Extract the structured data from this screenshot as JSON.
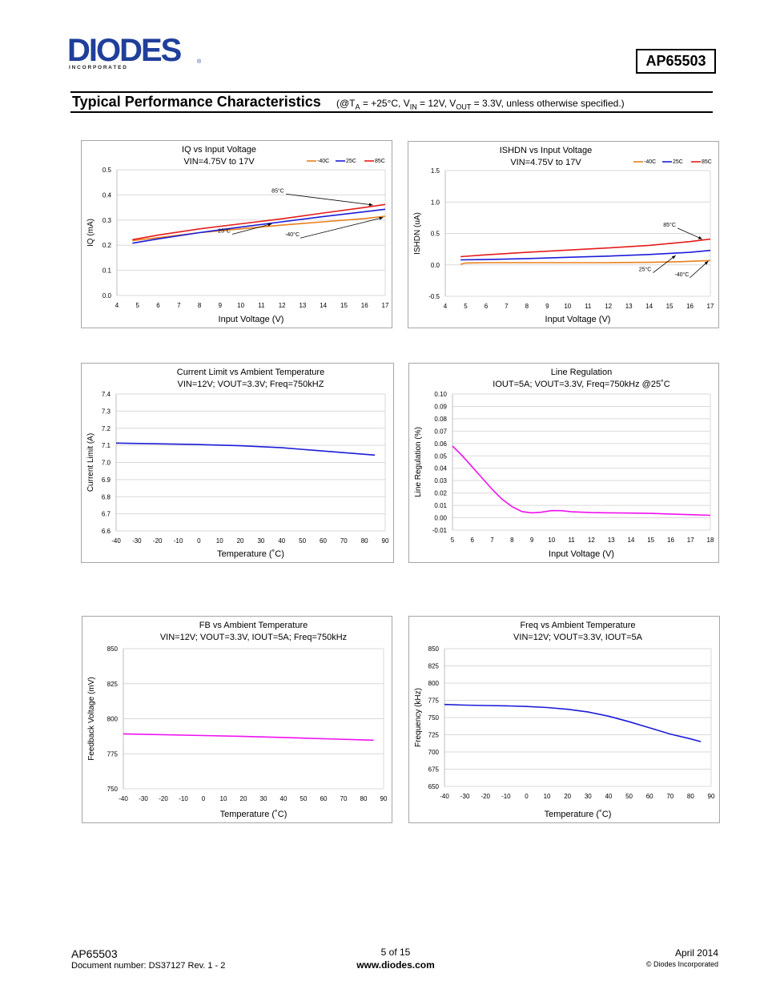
{
  "header": {
    "part_number": "AP65503",
    "section_title": "Typical Performance Characteristics",
    "conditions": {
      "open": "(@T",
      "ta_sub": "A",
      "mid1": " = +25°C, V",
      "vin_sub": "IN",
      "mid2": " = 12V, V",
      "vout_sub": "OUT",
      "end": " = 3.3V, unless otherwise specified.)"
    }
  },
  "logo": {
    "text": "DIODES",
    "sub": "I N C O R P O R A T E D",
    "reg": "®"
  },
  "colors": {
    "orange": "#E8801C",
    "blue": "#1C1CD8",
    "red": "#E41C1C",
    "magenta": "#F010F0",
    "grid": "#d9d9d9"
  },
  "chart_data": [
    {
      "type": "line",
      "title": "IQ vs Input Voltage",
      "subtitle": "VIN=4.75V to 17V",
      "xlabel": "Input Voltage (V)",
      "ylabel": "IQ (mA)",
      "xlim": [
        4,
        17
      ],
      "ylim": [
        0,
        0.5
      ],
      "xticks": [
        "4",
        "5",
        "6",
        "7",
        "8",
        "9",
        "10",
        "11",
        "12",
        "13",
        "14",
        "15",
        "16",
        "17"
      ],
      "yticks": [
        "0.0",
        "0.1",
        "0.2",
        "0.3",
        "0.4",
        "0.5"
      ],
      "grid": true,
      "legend": "top-right",
      "series": [
        {
          "name": "-40C",
          "color": "#E8801C",
          "x": [
            4.75,
            6,
            8,
            10,
            12,
            14,
            16,
            17
          ],
          "y": [
            0.218,
            0.23,
            0.25,
            0.265,
            0.28,
            0.293,
            0.306,
            0.315
          ]
        },
        {
          "name": "25C",
          "color": "#1C1CD8",
          "x": [
            4.75,
            6,
            8,
            10,
            12,
            14,
            16,
            17
          ],
          "y": [
            0.208,
            0.225,
            0.25,
            0.272,
            0.293,
            0.314,
            0.333,
            0.343
          ]
        },
        {
          "name": "85C",
          "color": "#E41C1C",
          "x": [
            4.75,
            6,
            8,
            10,
            12,
            14,
            16,
            17
          ],
          "y": [
            0.222,
            0.24,
            0.265,
            0.285,
            0.305,
            0.328,
            0.35,
            0.362
          ]
        }
      ],
      "annotations": [
        {
          "text": "85°C",
          "lx": 11.8,
          "ly": 0.41,
          "ax": 16.4,
          "ay": 0.36
        },
        {
          "text": "25°C",
          "lx": 9.2,
          "ly": 0.25,
          "ax": 11.5,
          "ay": 0.285
        },
        {
          "text": "-40°C",
          "lx": 12.5,
          "ly": 0.235,
          "ax": 16.9,
          "ay": 0.31
        }
      ]
    },
    {
      "type": "line",
      "title": "ISHDN vs Input Voltage",
      "subtitle": "VIN=4.75V to 17V",
      "xlabel": "Input Voltage (V)",
      "ylabel": "ISHDN (uA)",
      "xlim": [
        4,
        17
      ],
      "ylim": [
        -0.5,
        1.5
      ],
      "xticks": [
        "4",
        "5",
        "6",
        "7",
        "8",
        "9",
        "10",
        "11",
        "12",
        "13",
        "14",
        "15",
        "16",
        "17"
      ],
      "yticks": [
        "-0.5",
        "0.0",
        "0.5",
        "1.0",
        "1.5"
      ],
      "grid": true,
      "legend": "top-right",
      "series": [
        {
          "name": "-40C",
          "color": "#E8801C",
          "x": [
            4.75,
            5,
            6,
            8,
            10,
            12,
            14,
            15.5,
            17
          ],
          "y": [
            0.01,
            0.03,
            0.035,
            0.035,
            0.035,
            0.035,
            0.04,
            0.05,
            0.07
          ]
        },
        {
          "name": "25C",
          "color": "#1C1CD8",
          "x": [
            4.75,
            6,
            8,
            10,
            12,
            14,
            16,
            17
          ],
          "y": [
            0.08,
            0.085,
            0.1,
            0.12,
            0.14,
            0.165,
            0.2,
            0.23
          ]
        },
        {
          "name": "85C",
          "color": "#E41C1C",
          "x": [
            4.75,
            6,
            8,
            10,
            12,
            14,
            16,
            17
          ],
          "y": [
            0.13,
            0.16,
            0.2,
            0.235,
            0.27,
            0.31,
            0.37,
            0.41
          ]
        }
      ],
      "annotations": [
        {
          "text": "85°C",
          "lx": 15.0,
          "ly": 0.61,
          "ax": 16.6,
          "ay": 0.41
        },
        {
          "text": "25°C",
          "lx": 13.8,
          "ly": -0.1,
          "ax": 15.3,
          "ay": 0.15
        },
        {
          "text": "-40°C",
          "lx": 15.6,
          "ly": -0.18,
          "ax": 16.9,
          "ay": 0.06
        }
      ]
    },
    {
      "type": "line",
      "title": "Current Limit vs Ambient Temperature",
      "subtitle": "VIN=12V; VOUT=3.3V; Freq=750kHZ",
      "xlabel": "Temperature (˚C)",
      "ylabel": "Current Limit (A)",
      "xlim": [
        -40,
        90
      ],
      "ylim": [
        6.6,
        7.4
      ],
      "xticks": [
        "-40",
        "-30",
        "-20",
        "-10",
        "0",
        "10",
        "20",
        "30",
        "40",
        "50",
        "60",
        "70",
        "80",
        "90"
      ],
      "yticks": [
        "6.6",
        "6.7",
        "6.8",
        "6.9",
        "7.0",
        "7.1",
        "7.2",
        "7.3",
        "7.4"
      ],
      "grid": true,
      "series": [
        {
          "color": "#1C1CD8",
          "x": [
            -40,
            -20,
            0,
            20,
            40,
            60,
            85
          ],
          "y": [
            7.113,
            7.109,
            7.105,
            7.098,
            7.086,
            7.067,
            7.043
          ]
        }
      ]
    },
    {
      "type": "line",
      "title": "Line Regulation",
      "subtitle": "IOUT=5A; VOUT=3.3V, Freq=750kHz @25˚C",
      "xlabel": "Input Voltage (V)",
      "ylabel": "Line Regulation (%)",
      "xlim": [
        5,
        18
      ],
      "ylim": [
        -0.01,
        0.1
      ],
      "xticks": [
        "5",
        "6",
        "7",
        "8",
        "9",
        "10",
        "11",
        "12",
        "13",
        "14",
        "15",
        "16",
        "17",
        "18"
      ],
      "yticks": [
        "-0.01",
        "0.00",
        "0.01",
        "0.02",
        "0.03",
        "0.04",
        "0.05",
        "0.06",
        "0.07",
        "0.08",
        "0.09",
        "0.10"
      ],
      "grid": true,
      "series": [
        {
          "color": "#F010F0",
          "x": [
            5,
            5.5,
            6,
            6.5,
            7,
            7.5,
            8,
            8.5,
            9,
            9.5,
            10,
            10.5,
            11,
            12,
            13,
            14,
            15,
            16,
            17,
            18
          ],
          "y": [
            0.058,
            0.05,
            0.041,
            0.032,
            0.023,
            0.015,
            0.009,
            0.005,
            0.004,
            0.0045,
            0.0058,
            0.0057,
            0.0048,
            0.0042,
            0.004,
            0.0038,
            0.0035,
            0.003,
            0.0025,
            0.002
          ]
        }
      ]
    },
    {
      "type": "line",
      "title": "FB vs Ambient Temperature",
      "subtitle": "VIN=12V; VOUT=3.3V, IOUT=5A; Freq=750kHz",
      "xlabel": "Temperature (˚C)",
      "ylabel": "Feedback Voltage (mV)",
      "xlim": [
        -40,
        90
      ],
      "ylim": [
        750,
        850
      ],
      "xticks": [
        "-40",
        "-30",
        "-20",
        "-10",
        "0",
        "10",
        "20",
        "30",
        "40",
        "50",
        "60",
        "70",
        "80",
        "90"
      ],
      "yticks": [
        "750",
        "775",
        "800",
        "825",
        "850"
      ],
      "grid": true,
      "series": [
        {
          "color": "#F010F0",
          "x": [
            -40,
            0,
            20,
            40,
            60,
            85
          ],
          "y": [
            789.2,
            788.0,
            787.4,
            786.6,
            785.7,
            784.7
          ]
        }
      ]
    },
    {
      "type": "line",
      "title": "Freq vs Ambient Temperature",
      "subtitle": "VIN=12V; VOUT=3.3V, IOUT=5A",
      "xlabel": "Temperature (˚C)",
      "ylabel": "Frequency (kHz)",
      "xlim": [
        -40,
        90
      ],
      "ylim": [
        650,
        850
      ],
      "xticks": [
        "-40",
        "-30",
        "-20",
        "-10",
        "0",
        "10",
        "20",
        "30",
        "40",
        "50",
        "60",
        "70",
        "80",
        "90"
      ],
      "yticks": [
        "650",
        "675",
        "700",
        "725",
        "750",
        "775",
        "800",
        "825",
        "850"
      ],
      "grid": true,
      "series": [
        {
          "color": "#1C1CD8",
          "x": [
            -40,
            -30,
            -20,
            -10,
            0,
            10,
            20,
            30,
            40,
            50,
            60,
            70,
            80,
            85
          ],
          "y": [
            769,
            768,
            767.5,
            767,
            766,
            764.5,
            762,
            758,
            752,
            744,
            735,
            726,
            719,
            715
          ]
        }
      ]
    }
  ],
  "footer": {
    "part": "AP65503",
    "doc": "Document number: DS37127 Rev. 1 - 2",
    "page": "5 of 15",
    "url": "www.diodes.com",
    "date": "April 2014",
    "copyright": "© Diodes Incorporated"
  }
}
